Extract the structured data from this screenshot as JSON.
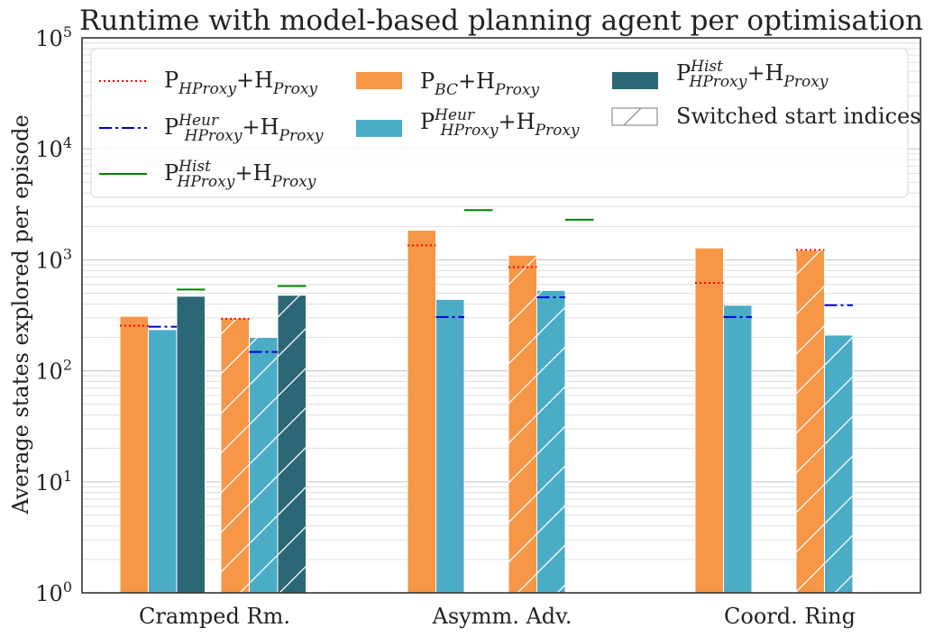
{
  "chart_data": {
    "type": "bar",
    "title": "Runtime with model-based planning agent per optimisation",
    "xlabel": "",
    "ylabel": "Average states explored per episode",
    "yscale": "log",
    "ylim": [
      1,
      100000
    ],
    "ytick_labels": [
      {
        "base": "10",
        "exp": "0",
        "value": 1
      },
      {
        "base": "10",
        "exp": "1",
        "value": 10
      },
      {
        "base": "10",
        "exp": "2",
        "value": 100
      },
      {
        "base": "10",
        "exp": "3",
        "value": 1000
      },
      {
        "base": "10",
        "exp": "4",
        "value": 10000
      },
      {
        "base": "10",
        "exp": "5",
        "value": 100000
      }
    ],
    "grid": "horizontal, major and minor",
    "legend_position": "top, 3 columns",
    "categories": [
      "Cramped Rm.",
      "Asymm. Adv.",
      "Coord. Ring"
    ],
    "bar_series": [
      {
        "key": "bc",
        "color": "#F79646",
        "label": [
          {
            "t": "P"
          },
          {
            "t": "BC",
            "s": "sub"
          },
          {
            "t": "+H"
          },
          {
            "t": "Proxy",
            "s": "sub"
          }
        ]
      },
      {
        "key": "heur",
        "color": "#4BACC6",
        "label": [
          {
            "t": "P"
          },
          {
            "t": "Heur",
            "s": "sup"
          },
          {
            "t": "HProxy",
            "s": "sub"
          },
          {
            "t": "+H"
          },
          {
            "t": "Proxy",
            "s": "sub"
          }
        ]
      },
      {
        "key": "hist",
        "color": "#2C6777",
        "label": [
          {
            "t": "P"
          },
          {
            "t": "Hist",
            "s": "sup"
          },
          {
            "t": "HProxy",
            "s": "sub"
          },
          {
            "t": "+H"
          },
          {
            "t": "Proxy",
            "s": "sub"
          }
        ]
      }
    ],
    "line_series": [
      {
        "key": "proxy",
        "color": "#FF0000",
        "dash": "2,3",
        "label": [
          {
            "t": "P"
          },
          {
            "t": "HProxy",
            "s": "sub"
          },
          {
            "t": "+H"
          },
          {
            "t": "Proxy",
            "s": "sub"
          }
        ]
      },
      {
        "key": "heur",
        "color": "#0000CC",
        "dash": "14,4,3,4",
        "label": [
          {
            "t": "P"
          },
          {
            "t": "Heur",
            "s": "sup"
          },
          {
            "t": "HProxy",
            "s": "sub"
          },
          {
            "t": "+H"
          },
          {
            "t": "Proxy",
            "s": "sub"
          }
        ]
      },
      {
        "key": "hist",
        "color": "#008000",
        "dash": "",
        "label": [
          {
            "t": "P"
          },
          {
            "t": "Hist",
            "s": "sup"
          },
          {
            "t": "HProxy",
            "s": "sub"
          },
          {
            "t": "+H"
          },
          {
            "t": "Proxy",
            "s": "sub"
          }
        ]
      }
    ],
    "hatch_label": "Switched start indices",
    "groups": [
      {
        "category": "Cramped Rm.",
        "bars": [
          {
            "series": "bc",
            "value": 310,
            "switched": false,
            "line": {
              "series": "proxy",
              "value": 255
            }
          },
          {
            "series": "heur",
            "value": 235,
            "switched": false,
            "line": {
              "series": "heur",
              "value": 250
            }
          },
          {
            "series": "hist",
            "value": 470,
            "switched": false,
            "line": {
              "series": "hist",
              "value": 540
            }
          },
          {
            "series": "bc",
            "value": 300,
            "switched": true,
            "line": {
              "series": "proxy",
              "value": 295
            }
          },
          {
            "series": "heur",
            "value": 200,
            "switched": true,
            "line": {
              "series": "heur",
              "value": 148
            }
          },
          {
            "series": "hist",
            "value": 480,
            "switched": true,
            "line": {
              "series": "hist",
              "value": 580
            }
          }
        ]
      },
      {
        "category": "Asymm. Adv.",
        "bars": [
          {
            "series": "bc",
            "value": 1850,
            "switched": false,
            "line": {
              "series": "proxy",
              "value": 1350
            }
          },
          {
            "series": "heur",
            "value": 440,
            "switched": false,
            "line": {
              "series": "heur",
              "value": 305
            }
          },
          {
            "series": "hist",
            "value": null,
            "switched": false,
            "line": {
              "series": "hist",
              "value": 2800
            }
          },
          {
            "series": "bc",
            "value": 1100,
            "switched": true,
            "line": {
              "series": "proxy",
              "value": 860
            }
          },
          {
            "series": "heur",
            "value": 530,
            "switched": true,
            "line": {
              "series": "heur",
              "value": 460
            }
          },
          {
            "series": "hist",
            "value": null,
            "switched": true,
            "line": {
              "series": "hist",
              "value": 2300
            }
          }
        ]
      },
      {
        "category": "Coord. Ring",
        "bars": [
          {
            "series": "bc",
            "value": 1280,
            "switched": false,
            "line": {
              "series": "proxy",
              "value": 620
            }
          },
          {
            "series": "heur",
            "value": 390,
            "switched": false,
            "line": {
              "series": "heur",
              "value": 305
            }
          },
          {
            "series": "hist",
            "value": null,
            "switched": false,
            "line": null
          },
          {
            "series": "bc",
            "value": 1220,
            "switched": true,
            "line": {
              "series": "proxy",
              "value": 1230
            }
          },
          {
            "series": "heur",
            "value": 210,
            "switched": true,
            "line": {
              "series": "heur",
              "value": 390
            }
          },
          {
            "series": "hist",
            "value": null,
            "switched": true,
            "line": null
          }
        ]
      }
    ]
  }
}
